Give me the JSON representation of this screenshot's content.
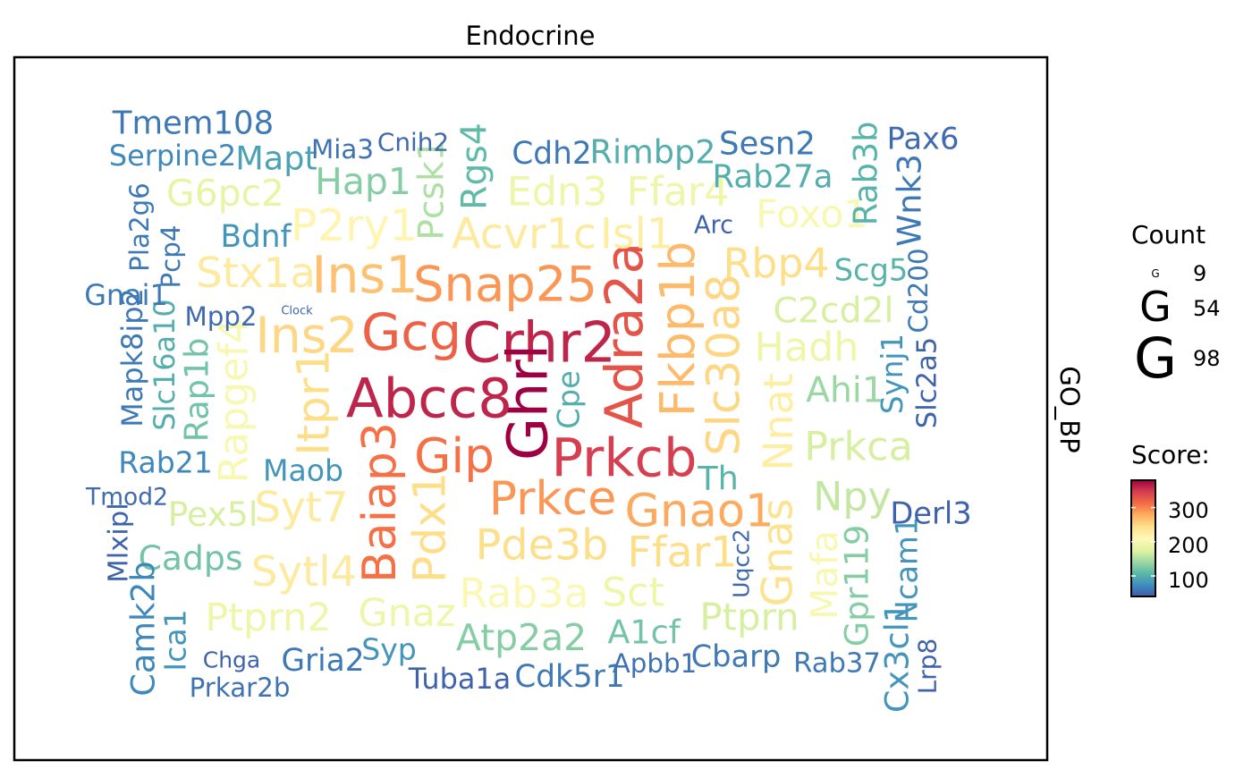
{
  "chart_data": {
    "type": "wordcloud",
    "title": "Endocrine",
    "facet_label": "GO_BP",
    "legend": {
      "count_title": "Count",
      "count_glyph": "G",
      "count_values": [
        "9",
        "54",
        "98"
      ],
      "score_title": "Score:",
      "score_ticks": [
        "300",
        "200",
        "100"
      ],
      "score_range": [
        40,
        380
      ],
      "score_tick_values": [
        300,
        200,
        100
      ]
    },
    "colors": {
      "scale": [
        "#3f5ba8",
        "#3e8ebf",
        "#5bb8a8",
        "#9ed9a3",
        "#e3f4a1",
        "#fff9b8",
        "#fde08b",
        "#fdae61",
        "#f46d43",
        "#d53e4f",
        "#9e0142"
      ],
      "frame": "#000000"
    },
    "words": [
      {
        "label": "Crhr2",
        "count": 98,
        "score": 360
      },
      {
        "label": "Ghrl",
        "count": 98,
        "score": 385
      },
      {
        "label": "Abcc8",
        "count": 95,
        "score": 360
      },
      {
        "label": "Prkcb",
        "count": 90,
        "score": 345
      },
      {
        "label": "Adra2a",
        "count": 88,
        "score": 330
      },
      {
        "label": "Gcg",
        "count": 85,
        "score": 320
      },
      {
        "label": "Ins1",
        "count": 85,
        "score": 265
      },
      {
        "label": "Ins2",
        "count": 80,
        "score": 250
      },
      {
        "label": "Snap25",
        "count": 78,
        "score": 290
      },
      {
        "label": "Fkbp1b",
        "count": 75,
        "score": 270
      },
      {
        "label": "Baiap3",
        "count": 72,
        "score": 310
      },
      {
        "label": "Gip",
        "count": 75,
        "score": 310
      },
      {
        "label": "Prkce",
        "count": 72,
        "score": 290
      },
      {
        "label": "Gnao1",
        "count": 70,
        "score": 280
      },
      {
        "label": "Slc30a8",
        "count": 70,
        "score": 250
      },
      {
        "label": "Itpr1",
        "count": 68,
        "score": 245
      },
      {
        "label": "Pdx1",
        "count": 68,
        "score": 245
      },
      {
        "label": "P2ry1",
        "count": 66,
        "score": 215
      },
      {
        "label": "Acvr1c",
        "count": 62,
        "score": 230
      },
      {
        "label": "Isl1",
        "count": 62,
        "score": 225
      },
      {
        "label": "Pde3b",
        "count": 62,
        "score": 245
      },
      {
        "label": "Ffar1",
        "count": 62,
        "score": 245
      },
      {
        "label": "Gnas",
        "count": 62,
        "score": 240
      },
      {
        "label": "Rbp4",
        "count": 58,
        "score": 245
      },
      {
        "label": "Stx1a",
        "count": 60,
        "score": 230
      },
      {
        "label": "Syt7",
        "count": 60,
        "score": 230
      },
      {
        "label": "Sytl4",
        "count": 60,
        "score": 230
      },
      {
        "label": "Nnat",
        "count": 58,
        "score": 225
      },
      {
        "label": "Rab3a",
        "count": 58,
        "score": 205
      },
      {
        "label": "Rapgef4",
        "count": 55,
        "score": 200
      },
      {
        "label": "Edn3",
        "count": 55,
        "score": 190
      },
      {
        "label": "Ffar4",
        "count": 55,
        "score": 190
      },
      {
        "label": "Sct",
        "count": 55,
        "score": 190
      },
      {
        "label": "Hadh",
        "count": 55,
        "score": 190
      },
      {
        "label": "Foxo1",
        "count": 52,
        "score": 200
      },
      {
        "label": "Prkca",
        "count": 55,
        "score": 170
      },
      {
        "label": "Npy",
        "count": 55,
        "score": 160
      },
      {
        "label": "Gnaz",
        "count": 52,
        "score": 190
      },
      {
        "label": "Ptprn2",
        "count": 52,
        "score": 190
      },
      {
        "label": "Ptprn",
        "count": 50,
        "score": 170
      },
      {
        "label": "Mafa",
        "count": 48,
        "score": 200
      },
      {
        "label": "G6pc2",
        "count": 48,
        "score": 180
      },
      {
        "label": "Atp2a2",
        "count": 48,
        "score": 130
      },
      {
        "label": "Hap1",
        "count": 48,
        "score": 130
      },
      {
        "label": "Pcsk1",
        "count": 45,
        "score": 150
      },
      {
        "label": "Rgs4",
        "count": 45,
        "score": 110
      },
      {
        "label": "C2cd2l",
        "count": 45,
        "score": 170
      },
      {
        "label": "Ahi1",
        "count": 45,
        "score": 140
      },
      {
        "label": "Pex5l",
        "count": 42,
        "score": 170
      },
      {
        "label": "Cadps",
        "count": 42,
        "score": 120
      },
      {
        "label": "Gpr119",
        "count": 40,
        "score": 130
      },
      {
        "label": "A1cf",
        "count": 40,
        "score": 120
      },
      {
        "label": "Rimbp2",
        "count": 40,
        "score": 100
      },
      {
        "label": "Rab3b",
        "count": 40,
        "score": 105
      },
      {
        "label": "Th",
        "count": 40,
        "score": 105
      },
      {
        "label": "Rab27a",
        "count": 38,
        "score": 100
      },
      {
        "label": "Scg5",
        "count": 35,
        "score": 105
      },
      {
        "label": "Cpe",
        "count": 35,
        "score": 100
      },
      {
        "label": "Slc16a10",
        "count": 32,
        "score": 100
      },
      {
        "label": "Rap1b",
        "count": 40,
        "score": 120
      },
      {
        "label": "Mapt",
        "count": 40,
        "score": 90
      },
      {
        "label": "Wnk3",
        "count": 40,
        "score": 60
      },
      {
        "label": "Camk2b",
        "count": 40,
        "score": 70
      },
      {
        "label": "Cx3cl1",
        "count": 40,
        "score": 80
      },
      {
        "label": "Ncam1",
        "count": 35,
        "score": 80
      },
      {
        "label": "Tmem108",
        "count": 38,
        "score": 60
      },
      {
        "label": "Sesn2",
        "count": 38,
        "score": 60
      },
      {
        "label": "Cdh2",
        "count": 36,
        "score": 60
      },
      {
        "label": "Bdnf",
        "count": 36,
        "score": 80
      },
      {
        "label": "Gria2",
        "count": 36,
        "score": 60
      },
      {
        "label": "Cdk5r1",
        "count": 36,
        "score": 60
      },
      {
        "label": "Cbarp",
        "count": 35,
        "score": 60
      },
      {
        "label": "Pax6",
        "count": 35,
        "score": 50
      },
      {
        "label": "Derl3",
        "count": 35,
        "score": 45
      },
      {
        "label": "Maob",
        "count": 34,
        "score": 80
      },
      {
        "label": "Syp",
        "count": 34,
        "score": 80
      },
      {
        "label": "Rab21",
        "count": 34,
        "score": 70
      },
      {
        "label": "Ica1",
        "count": 34,
        "score": 80
      },
      {
        "label": "Synj1",
        "count": 33,
        "score": 80
      },
      {
        "label": "Tuba1a",
        "count": 32,
        "score": 45
      },
      {
        "label": "Serpine2",
        "count": 32,
        "score": 70
      },
      {
        "label": "Gnai1",
        "count": 32,
        "score": 60
      },
      {
        "label": "Mapk8ip2",
        "count": 32,
        "score": 60
      },
      {
        "label": "Slc2a5",
        "count": 30,
        "score": 45
      },
      {
        "label": "Rab37",
        "count": 30,
        "score": 60
      },
      {
        "label": "Mlxipl",
        "count": 30,
        "score": 45
      },
      {
        "label": "Cd200",
        "count": 28,
        "score": 60
      },
      {
        "label": "Prkar2b",
        "count": 28,
        "score": 55
      },
      {
        "label": "Apbb1",
        "count": 28,
        "score": 55
      },
      {
        "label": "Pla2g6",
        "count": 28,
        "score": 60
      },
      {
        "label": "Pcp4",
        "count": 28,
        "score": 60
      },
      {
        "label": "Mia3",
        "count": 28,
        "score": 55
      },
      {
        "label": "Mpp2",
        "count": 28,
        "score": 50
      },
      {
        "label": "Lrp8",
        "count": 26,
        "score": 45
      },
      {
        "label": "Cnih2",
        "count": 26,
        "score": 50
      },
      {
        "label": "Arc",
        "count": 25,
        "score": 45
      },
      {
        "label": "Tmod2",
        "count": 24,
        "score": 50
      },
      {
        "label": "Uqcc2",
        "count": 22,
        "score": 50
      },
      {
        "label": "Chga",
        "count": 22,
        "score": 45
      },
      {
        "label": "Clock",
        "count": 9,
        "score": 45
      }
    ]
  }
}
